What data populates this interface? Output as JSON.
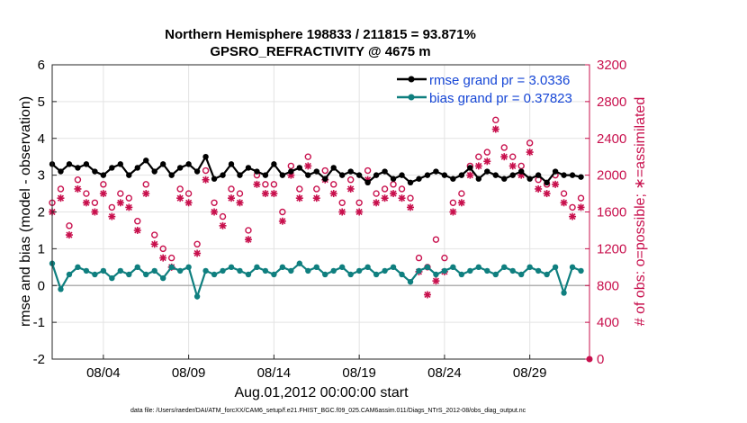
{
  "chart_data": {
    "type": "line",
    "title": "Northern Hemisphere 198833 / 211815 = 93.871%",
    "subtitle": "GPSRO_REFRACTIVITY @ 4675 m",
    "xlabel": "Aug.01,2012 00:00:00 start",
    "ylabel": "rmse and bias (model - observation)",
    "y2label": "# of obs: o=possible; ∗=assimilated",
    "xlim": [
      0,
      31.5
    ],
    "ylim": [
      -2,
      6
    ],
    "y2lim": [
      0,
      3200
    ],
    "x_ticks": [
      3,
      8,
      13,
      18,
      23,
      28
    ],
    "x_tick_labels": [
      "08/04",
      "08/09",
      "08/14",
      "08/19",
      "08/24",
      "08/29"
    ],
    "y_ticks": [
      -2,
      -1,
      0,
      1,
      2,
      3,
      4,
      5,
      6
    ],
    "y_tick_labels": [
      "-2",
      "-1",
      "0",
      "1",
      "2",
      "3",
      "4",
      "5",
      "6"
    ],
    "y2_ticks": [
      0,
      400,
      800,
      1200,
      1600,
      2000,
      2400,
      2800,
      3200
    ],
    "y2_tick_labels": [
      "0",
      "400",
      "800",
      "1200",
      "1600",
      "2000",
      "2400",
      "2800",
      "3200"
    ],
    "grid": true,
    "legend_position": "top-right",
    "colors": {
      "rmse": "#000000",
      "bias": "#0f7f7f",
      "obs": "#c8104d",
      "zero_line": "#b0b0b0"
    },
    "series": [
      {
        "name": "rmse grand pr = 3.0336",
        "key": "rmse",
        "color": "#000000",
        "x": [
          0.0,
          0.5,
          1.0,
          1.5,
          2.0,
          2.5,
          3.0,
          3.5,
          4.0,
          4.5,
          5.0,
          5.5,
          6.0,
          6.5,
          7.0,
          7.5,
          8.0,
          8.5,
          9.0,
          9.5,
          10.0,
          10.5,
          11.0,
          11.5,
          12.0,
          12.5,
          13.0,
          13.5,
          14.0,
          14.5,
          15.0,
          15.5,
          16.0,
          16.5,
          17.0,
          17.5,
          18.0,
          18.5,
          19.0,
          19.5,
          20.0,
          20.5,
          21.0,
          21.5,
          22.0,
          22.5,
          23.0,
          23.5,
          24.0,
          24.5,
          25.0,
          25.5,
          26.0,
          26.5,
          27.0,
          27.5,
          28.0,
          28.5,
          29.0,
          29.5,
          30.0,
          30.5,
          31.0
        ],
        "values": [
          3.3,
          3.1,
          3.3,
          3.2,
          3.3,
          3.1,
          3.0,
          3.2,
          3.3,
          3.0,
          3.2,
          3.4,
          3.1,
          3.3,
          3.0,
          3.2,
          3.3,
          3.1,
          3.5,
          2.9,
          3.0,
          3.3,
          3.0,
          3.2,
          3.1,
          3.0,
          3.3,
          3.0,
          3.1,
          3.2,
          3.0,
          3.1,
          2.9,
          3.2,
          3.0,
          3.1,
          3.0,
          2.8,
          3.0,
          3.1,
          2.9,
          3.0,
          2.8,
          2.9,
          3.0,
          3.1,
          3.0,
          2.9,
          3.0,
          3.2,
          2.9,
          3.1,
          3.0,
          2.9,
          3.0,
          3.1,
          2.9,
          3.0,
          2.8,
          3.1,
          3.0,
          3.0,
          2.95
        ]
      },
      {
        "name": "bias grand pr = 0.37823",
        "key": "bias",
        "color": "#0f7f7f",
        "x": [
          0.0,
          0.5,
          1.0,
          1.5,
          2.0,
          2.5,
          3.0,
          3.5,
          4.0,
          4.5,
          5.0,
          5.5,
          6.0,
          6.5,
          7.0,
          7.5,
          8.0,
          8.5,
          9.0,
          9.5,
          10.0,
          10.5,
          11.0,
          11.5,
          12.0,
          12.5,
          13.0,
          13.5,
          14.0,
          14.5,
          15.0,
          15.5,
          16.0,
          16.5,
          17.0,
          17.5,
          18.0,
          18.5,
          19.0,
          19.5,
          20.0,
          20.5,
          21.0,
          21.5,
          22.0,
          22.5,
          23.0,
          23.5,
          24.0,
          24.5,
          25.0,
          25.5,
          26.0,
          26.5,
          27.0,
          27.5,
          28.0,
          28.5,
          29.0,
          29.5,
          30.0,
          30.5,
          31.0
        ],
        "values": [
          0.6,
          -0.1,
          0.3,
          0.5,
          0.4,
          0.3,
          0.4,
          0.2,
          0.4,
          0.3,
          0.5,
          0.3,
          0.4,
          0.2,
          0.5,
          0.4,
          0.5,
          -0.3,
          0.4,
          0.3,
          0.4,
          0.5,
          0.4,
          0.3,
          0.5,
          0.4,
          0.3,
          0.5,
          0.4,
          0.6,
          0.4,
          0.5,
          0.3,
          0.4,
          0.5,
          0.3,
          0.4,
          0.5,
          0.3,
          0.4,
          0.5,
          0.3,
          0.1,
          0.4,
          0.5,
          0.3,
          0.4,
          0.5,
          0.3,
          0.4,
          0.5,
          0.4,
          0.3,
          0.5,
          0.4,
          0.3,
          0.5,
          0.4,
          0.3,
          0.5,
          -0.2,
          0.5,
          0.4
        ]
      },
      {
        "name": "possible",
        "key": "possible",
        "marker": "o",
        "axis": "right",
        "color": "#c8104d",
        "x": [
          0,
          0.5,
          1,
          1.5,
          2,
          2.5,
          3,
          3.5,
          4,
          4.5,
          5,
          5.5,
          6,
          6.5,
          7,
          7.5,
          8,
          8.5,
          9,
          9.5,
          10,
          10.5,
          11,
          11.5,
          12,
          12.5,
          13,
          13.5,
          14,
          14.5,
          15,
          15.5,
          16,
          16.5,
          17,
          17.5,
          18,
          18.5,
          19,
          19.5,
          20,
          20.5,
          21,
          21.5,
          22,
          22.5,
          23,
          23.5,
          24,
          24.5,
          25,
          25.5,
          26,
          26.5,
          27,
          27.5,
          28,
          28.5,
          29,
          29.5,
          30,
          30.5,
          31
        ],
        "values": [
          1700,
          1850,
          1450,
          1950,
          1800,
          1700,
          1900,
          1650,
          1800,
          1750,
          1500,
          1900,
          1350,
          1200,
          1100,
          1850,
          1800,
          1250,
          2050,
          1700,
          1550,
          1850,
          1800,
          1400,
          2000,
          1900,
          1900,
          1600,
          2100,
          1850,
          2200,
          1850,
          2050,
          1900,
          1700,
          1950,
          1700,
          2050,
          1800,
          1850,
          1900,
          1850,
          1750,
          1100,
          1000,
          1300,
          1100,
          1700,
          1800,
          2100,
          2200,
          2250,
          2600,
          2300,
          2200,
          2100,
          2350,
          1950,
          1900,
          2000,
          1800,
          1650,
          1750
        ]
      },
      {
        "name": "assimilated",
        "key": "assimilated",
        "marker": "*",
        "axis": "right",
        "color": "#c8104d",
        "x": [
          0,
          0.5,
          1,
          1.5,
          2,
          2.5,
          3,
          3.5,
          4,
          4.5,
          5,
          5.5,
          6,
          6.5,
          7,
          7.5,
          8,
          8.5,
          9,
          9.5,
          10,
          10.5,
          11,
          11.5,
          12,
          12.5,
          13,
          13.5,
          14,
          14.5,
          15,
          15.5,
          16,
          16.5,
          17,
          17.5,
          18,
          18.5,
          19,
          19.5,
          20,
          20.5,
          21,
          21.5,
          22,
          22.5,
          23,
          23.5,
          24,
          24.5,
          25,
          25.5,
          26,
          26.5,
          27,
          27.5,
          28,
          28.5,
          29,
          29.5,
          30,
          30.5,
          31
        ],
        "values": [
          1600,
          1750,
          1350,
          1850,
          1700,
          1600,
          1800,
          1550,
          1700,
          1650,
          1400,
          1800,
          1250,
          1100,
          1000,
          1750,
          1700,
          1150,
          1950,
          1600,
          1450,
          1750,
          1700,
          1300,
          1900,
          1800,
          1800,
          1500,
          2000,
          1750,
          2100,
          1750,
          1950,
          1800,
          1600,
          1850,
          1600,
          1950,
          1700,
          1750,
          1800,
          1750,
          1650,
          950,
          700,
          850,
          950,
          1600,
          1700,
          2000,
          2100,
          2150,
          2500,
          2200,
          2100,
          2000,
          2250,
          1850,
          1800,
          1900,
          1700,
          1550,
          1650
        ]
      }
    ],
    "legend": [
      "rmse grand pr = 3.0336",
      "bias grand pr = 0.37823"
    ],
    "footnote": "data file: /Users/raeder/DAI/ATM_forcXX/CAM6_setup/f.e21.FHIST_BGC.f09_025.CAM6assim.011/Diags_NTrS_2012-08/obs_diag_output.nc"
  }
}
